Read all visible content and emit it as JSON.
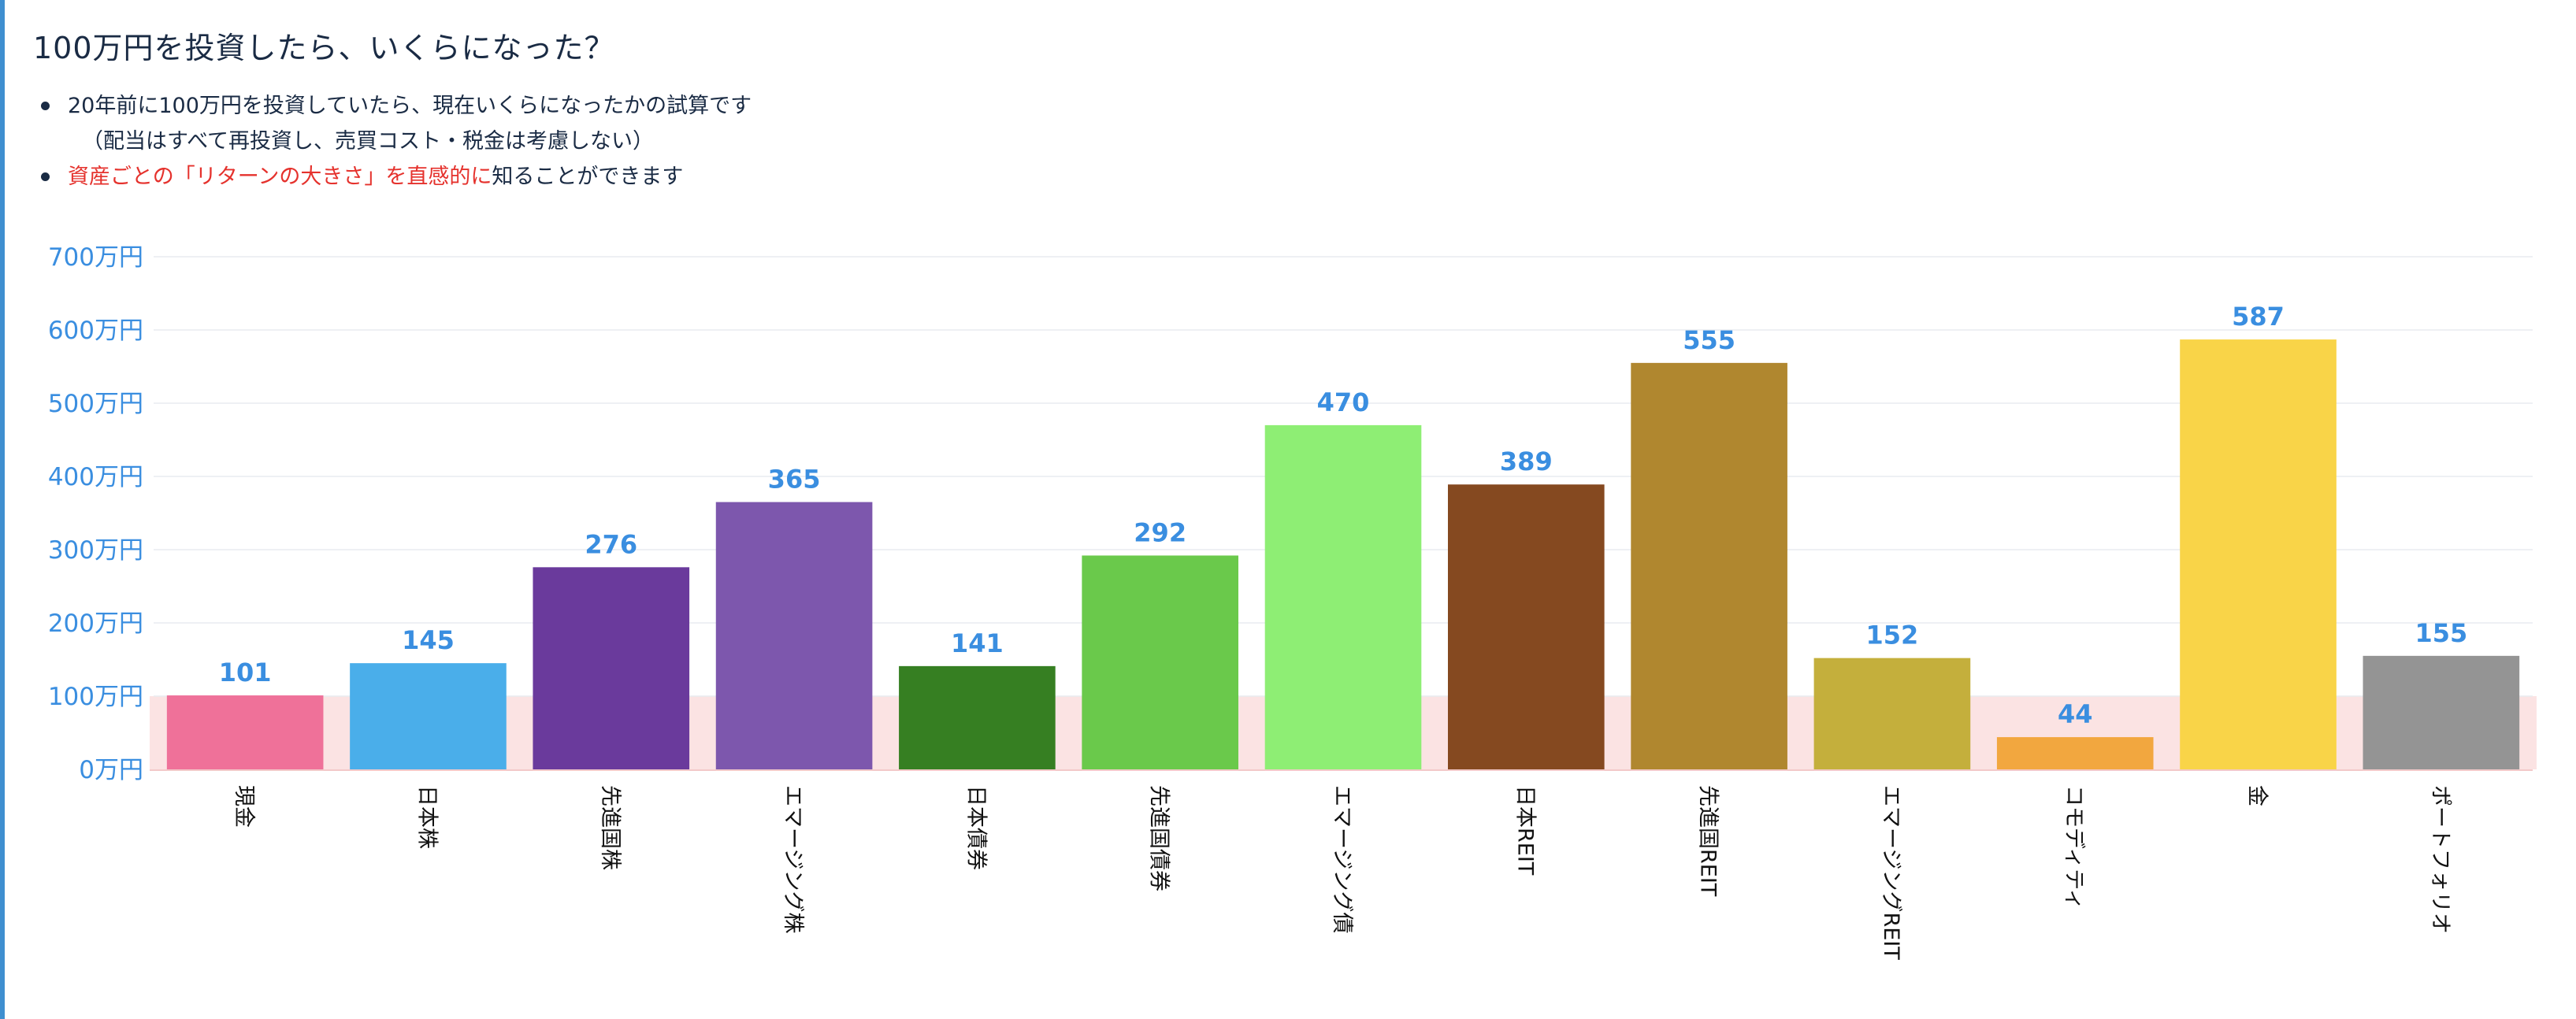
{
  "header": {
    "title": "100万円を投資したら、いくらになった？"
  },
  "notes": {
    "line1": "20年前に100万円を投資していたら、現在いくらになったかの試算です",
    "line1_sub": "（配当はすべて再投資し、売買コスト・税金は考慮しない）",
    "line2_red": "資産ごとの「リターンの大きさ」を直感的に",
    "line2_rest": "知ることができます"
  },
  "chart_data": {
    "type": "bar",
    "title": "",
    "xlabel": "",
    "ylabel": "",
    "ylim": [
      0,
      700
    ],
    "y_ticks": [
      0,
      100,
      200,
      300,
      400,
      500,
      600,
      700
    ],
    "y_tick_labels": [
      "0万円",
      "100万円",
      "200万円",
      "300万円",
      "400万円",
      "500万円",
      "600万円",
      "700万円"
    ],
    "y_unit": "万円",
    "grid": true,
    "highlight_band": [
      0,
      100
    ],
    "highlight_color": "#fbe3e3",
    "categories": [
      "現金",
      "日本株",
      "先進国株",
      "エマージング株",
      "日本債券",
      "先進国債券",
      "エマージング債",
      "日本REIT",
      "先進国REIT",
      "エマージングREIT",
      "コモディティ",
      "金",
      "ポートフォリオ"
    ],
    "values": [
      101,
      145,
      276,
      365,
      141,
      292,
      470,
      389,
      555,
      152,
      44,
      587,
      155
    ],
    "colors": [
      "#ef7199",
      "#4aaeea",
      "#6a3a9c",
      "#7d57ad",
      "#367f22",
      "#6ac94b",
      "#8eee74",
      "#854920",
      "#b0872f",
      "#c4af3c",
      "#f2a73f",
      "#f9d448",
      "#949494"
    ],
    "data_label_color": "#3a8ee0",
    "axis_label_color": "#3a8ee0"
  }
}
